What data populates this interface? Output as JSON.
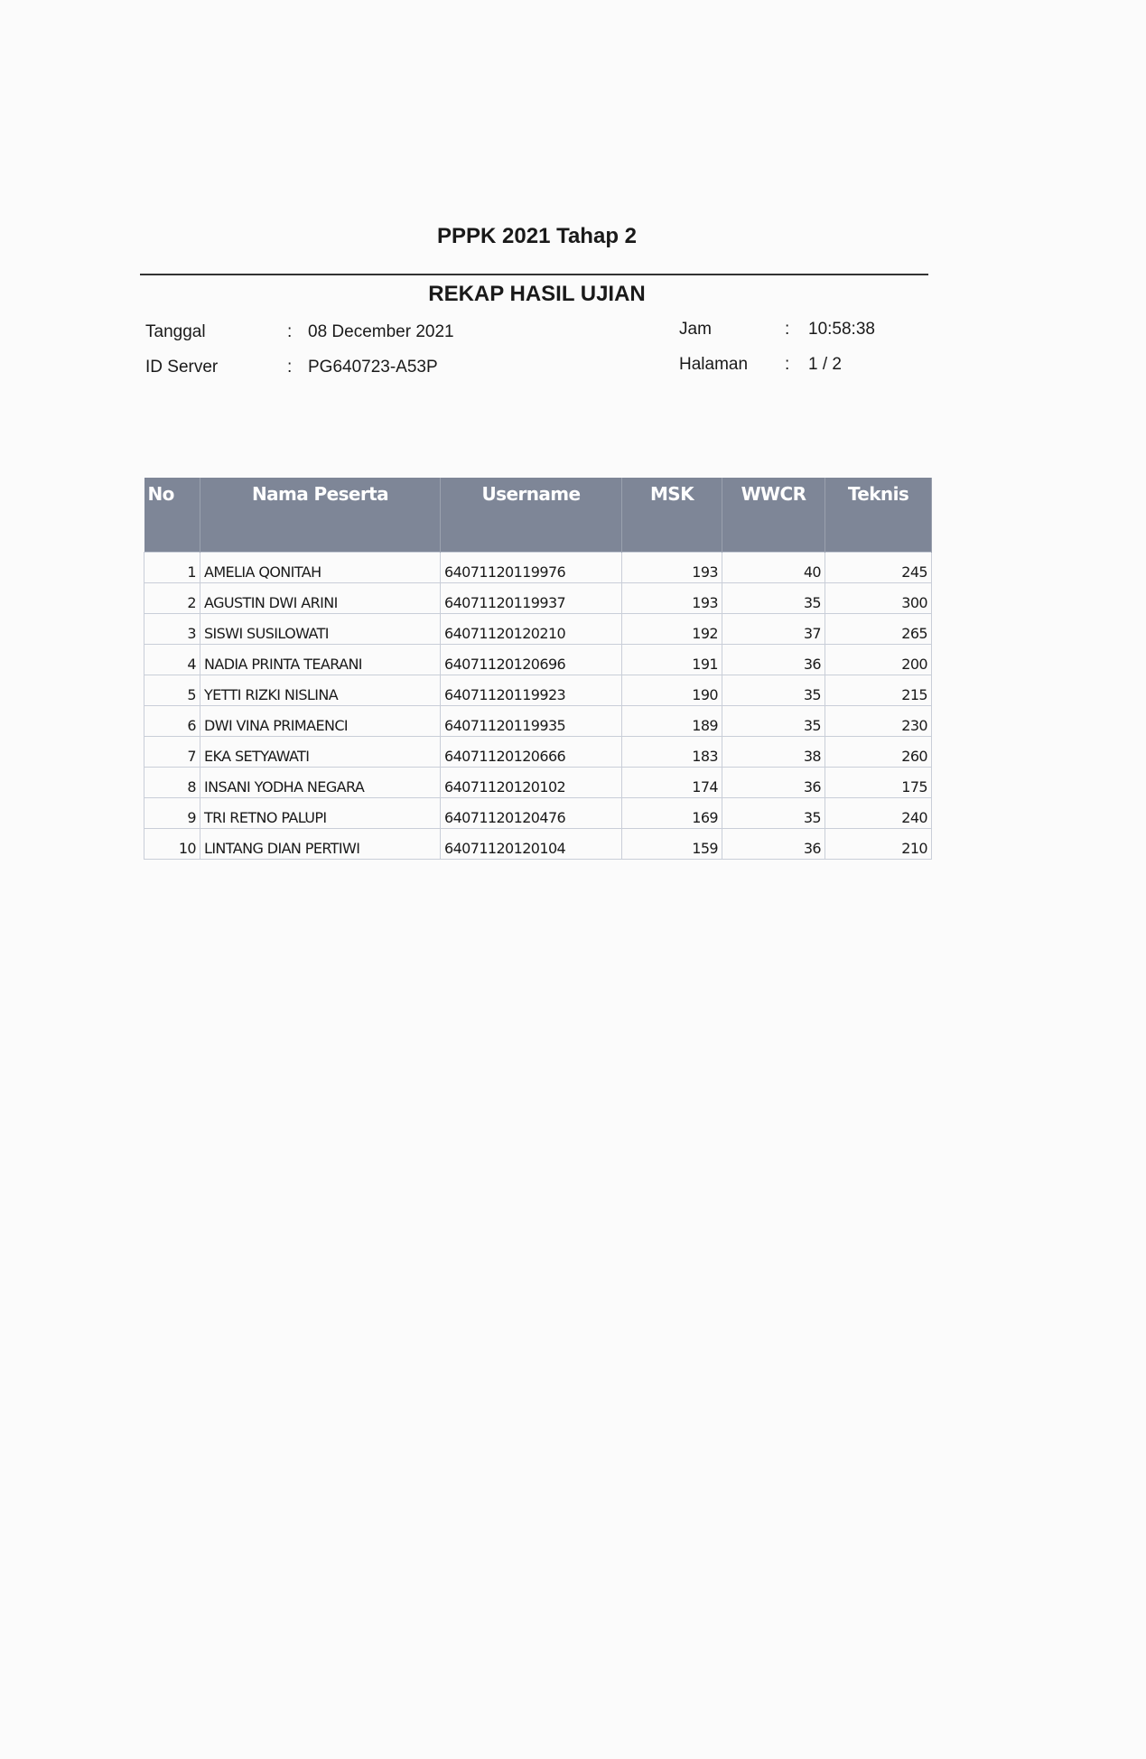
{
  "header": {
    "title": "PPPK 2021 Tahap 2",
    "subtitle": "REKAP HASIL UJIAN"
  },
  "meta": {
    "tanggal_label": "Tanggal",
    "tanggal_value": "08 December 2021",
    "server_label": "ID Server",
    "server_value": "PG640723-A53P",
    "jam_label": "Jam",
    "jam_value": "10:58:38",
    "halaman_label": "Halaman",
    "halaman_value": "1 / 2",
    "separator": ":"
  },
  "table": {
    "columns": [
      "No",
      "Nama Peserta",
      "Username",
      "MSK",
      "WWCR",
      "Teknis"
    ],
    "rows": [
      [
        "1",
        "AMELIA QONITAH",
        "64071120119976",
        "193",
        "40",
        "245"
      ],
      [
        "2",
        "AGUSTIN DWI ARINI",
        "64071120119937",
        "193",
        "35",
        "300"
      ],
      [
        "3",
        "SISWI SUSILOWATI",
        "64071120120210",
        "192",
        "37",
        "265"
      ],
      [
        "4",
        "NADIA PRINTA TEARANI",
        "64071120120696",
        "191",
        "36",
        "200"
      ],
      [
        "5",
        "YETTI RIZKI NISLINA",
        "64071120119923",
        "190",
        "35",
        "215"
      ],
      [
        "6",
        "DWI VINA PRIMAENCI",
        "64071120119935",
        "189",
        "35",
        "230"
      ],
      [
        "7",
        "EKA SETYAWATI",
        "64071120120666",
        "183",
        "38",
        "260"
      ],
      [
        "8",
        "INSANI YODHA NEGARA",
        "64071120120102",
        "174",
        "36",
        "175"
      ],
      [
        "9",
        "TRI RETNO PALUPI",
        "64071120120476",
        "169",
        "35",
        "240"
      ],
      [
        "10",
        "LINTANG DIAN PERTIWI",
        "64071120120104",
        "159",
        "36",
        "210"
      ]
    ]
  },
  "colors": {
    "header_bg": "#7e8697",
    "header_text": "#ffffff"
  }
}
